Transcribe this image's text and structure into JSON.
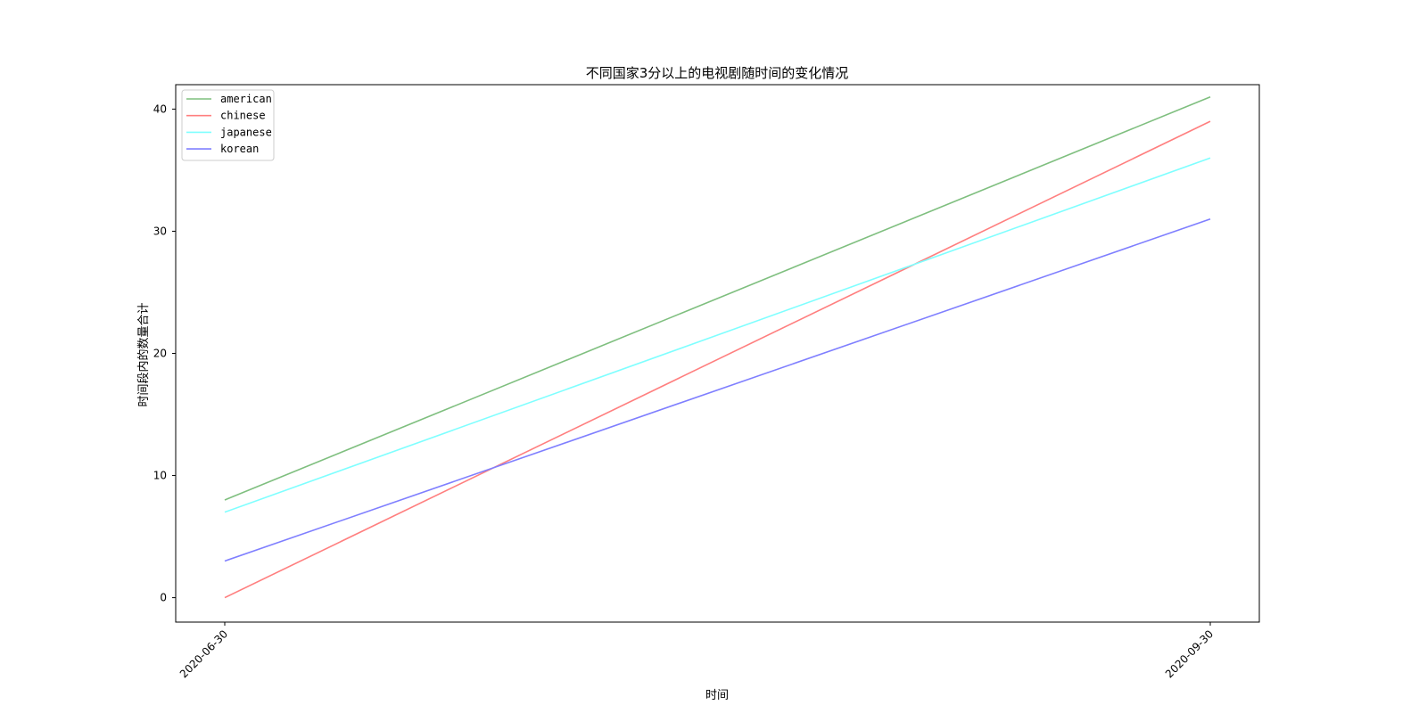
{
  "chart_data": {
    "type": "line",
    "title": "不同国家3分以上的电视剧随时间的变化情况",
    "xlabel": "时间",
    "ylabel": "时间段内的数量合计",
    "categories": [
      "2020-06-30",
      "2020-09-30"
    ],
    "ylim": [
      -2,
      42
    ],
    "yticks": [
      0,
      10,
      20,
      30,
      40
    ],
    "grid": false,
    "legend_position": "top-left",
    "series": [
      {
        "name": "american",
        "color": "#7fbf7f",
        "values": [
          8,
          41
        ]
      },
      {
        "name": "chinese",
        "color": "#ff7f7f",
        "values": [
          0,
          39
        ]
      },
      {
        "name": "japanese",
        "color": "#7fffff",
        "values": [
          7,
          36
        ]
      },
      {
        "name": "korean",
        "color": "#7f7fff",
        "values": [
          3,
          31
        ]
      }
    ]
  }
}
